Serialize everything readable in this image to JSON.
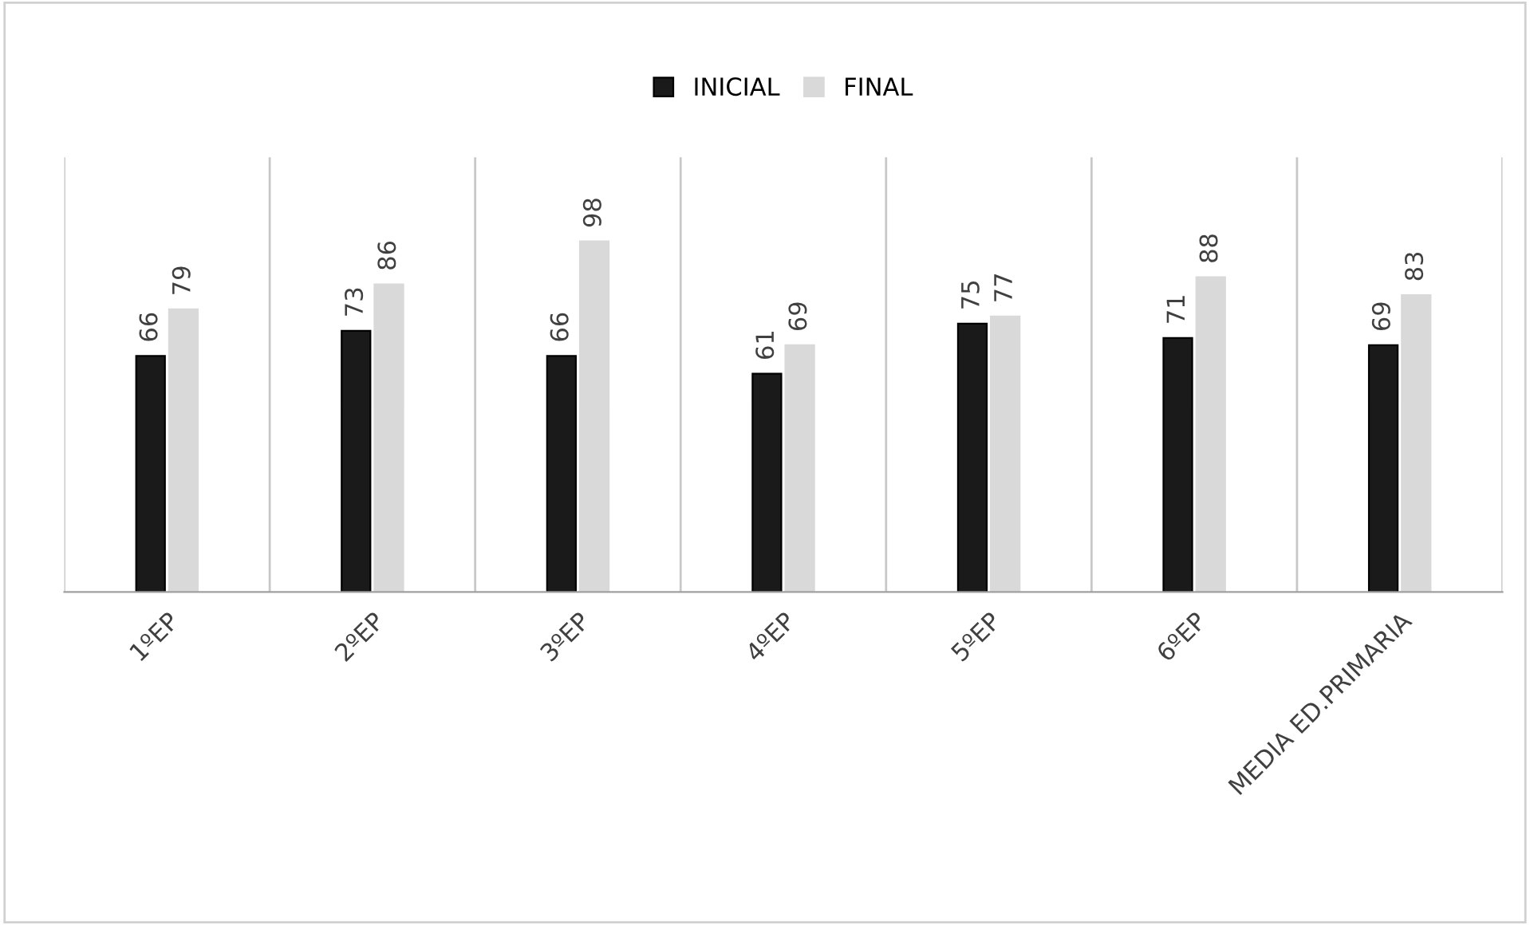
{
  "chart_data": {
    "type": "bar",
    "categories": [
      "1ºEP",
      "2ºEP",
      "3ºEP",
      "4ºEP",
      "5ºEP",
      "6ºEP",
      "MEDIA ED.PRIMARIA"
    ],
    "series": [
      {
        "name": "INICIAL",
        "color": "#1a1a1a",
        "values": [
          66,
          73,
          66,
          61,
          75,
          71,
          69
        ]
      },
      {
        "name": "FINAL",
        "color": "#d9d9d9",
        "values": [
          79,
          86,
          98,
          69,
          77,
          88,
          83
        ]
      }
    ],
    "data_labels": true,
    "relative": false,
    "grid": "x",
    "legend": "top"
  }
}
